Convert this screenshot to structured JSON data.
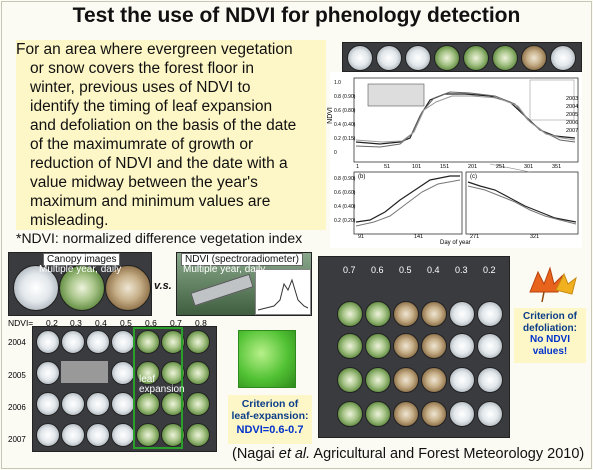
{
  "title": "Test the use of NDVI for phenology detection",
  "body_lines": [
    "For an area where evergreen vegetation",
    "or snow covers the forest floor in",
    "winter, previous uses of NDVI to",
    "identify the timing of leaf expansion",
    "and defoliation on the basis of the date",
    "of the maximumrate of growth or",
    "reduction of NDVI and the date with a",
    "value midway between the year's",
    "maximum and minimum values are",
    "misleading."
  ],
  "ndvi_note": "*NDVI: normalized difference vegetation index",
  "canopy": {
    "title": "Canopy images",
    "subtitle": "Multiple year, daily"
  },
  "vs": "v.s.",
  "spectro": {
    "title": "NDVI (spectroradiometer)",
    "subtitle": "Multiple year, daily"
  },
  "ndvi_scale_label": "NDVI=",
  "ndvi_scale": [
    "0.2",
    "0.3",
    "0.4",
    "0.5",
    "0.6",
    "0.7",
    "0.8"
  ],
  "years": [
    "2004",
    "2005",
    "2006",
    "2007"
  ],
  "leaf_expansion_label": "leaf\nexpansion",
  "criterion_leaf": {
    "line1": "Criterion of",
    "line2": "leaf-expansion:",
    "value": "NDVI=0.6-0.7"
  },
  "criterion_defol": {
    "line1": "Criterion of",
    "line2": "defoliation:",
    "line3": "No NDVI",
    "line4": "values!"
  },
  "defol_ndvi": [
    "0.7",
    "0.6",
    "0.5",
    "0.4",
    "0.3",
    "0.2"
  ],
  "chart": {
    "ylabel": "NDVI",
    "xlabel": "Day of year",
    "top_yticks": [
      "1.0",
      "0.8 (0.90)",
      "0.6 (0.80)",
      "0.4 (0.40)",
      "0.2 (0.15)",
      "0"
    ],
    "top_xticks": [
      "1",
      "51",
      "101",
      "151",
      "201",
      "251",
      "301",
      "351"
    ],
    "bottom_yticks": [
      "0.8 (0.90)",
      "0.6 (0.60)",
      "0.4 (0.40)",
      "0.2 (0.20)"
    ],
    "bottom_xticks": [
      "91",
      "141",
      "271",
      "321"
    ],
    "panel_b": "(b)",
    "panel_c": "(c)",
    "legend": [
      "2003",
      "2004",
      "2005",
      "2006",
      "2007"
    ]
  },
  "citation": {
    "before": "(Nagai ",
    "italic": "et al.",
    "after": " Agricultural and Forest Meteorology 2010)"
  }
}
